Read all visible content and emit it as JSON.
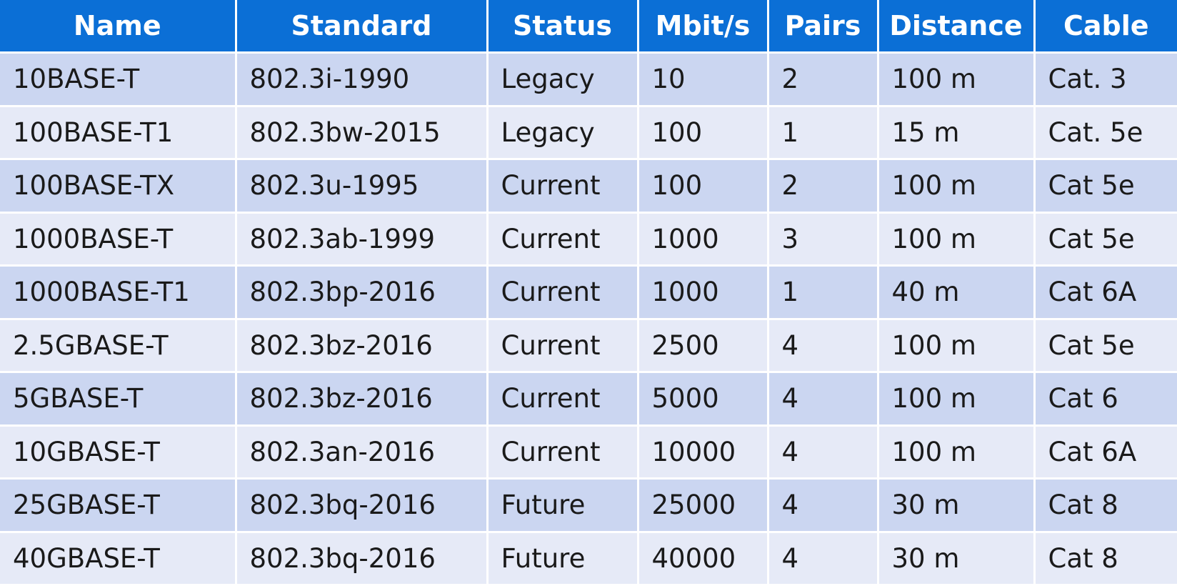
{
  "table": {
    "headers": [
      "Name",
      "Standard",
      "Status",
      "Mbit/s",
      "Pairs",
      "Distance",
      "Cable"
    ],
    "rows": [
      [
        "10BASE-T",
        "802.3i-1990",
        "Legacy",
        "10",
        "2",
        "100 m",
        "Cat. 3"
      ],
      [
        "100BASE-T1",
        "802.3bw-2015",
        "Legacy",
        "100",
        "1",
        "15 m",
        "Cat. 5e"
      ],
      [
        "100BASE-TX",
        "802.3u-1995",
        "Current",
        "100",
        "2",
        "100 m",
        "Cat 5e"
      ],
      [
        "1000BASE-T",
        "802.3ab-1999",
        "Current",
        "1000",
        "3",
        "100 m",
        "Cat 5e"
      ],
      [
        "1000BASE-T1",
        "802.3bp-2016",
        "Current",
        "1000",
        "1",
        "40 m",
        "Cat 6A"
      ],
      [
        "2.5GBASE-T",
        "802.3bz-2016",
        "Current",
        "2500",
        "4",
        "100 m",
        "Cat 5e"
      ],
      [
        "5GBASE-T",
        "802.3bz-2016",
        "Current",
        "5000",
        "4",
        "100 m",
        "Cat 6"
      ],
      [
        "10GBASE-T",
        "802.3an-2016",
        "Current",
        "10000",
        "4",
        "100 m",
        "Cat 6A"
      ],
      [
        "25GBASE-T",
        "802.3bq-2016",
        "Future",
        "25000",
        "4",
        "30 m",
        "Cat 8"
      ],
      [
        "40GBASE-T",
        "802.3bq-2016",
        "Future",
        "40000",
        "4",
        "30 m",
        "Cat 8"
      ]
    ]
  },
  "colors": {
    "header_bg": "#0b6fd6",
    "header_text": "#ffffff",
    "row_odd_bg": "#cbd6f1",
    "row_even_bg": "#e6eaf7"
  }
}
